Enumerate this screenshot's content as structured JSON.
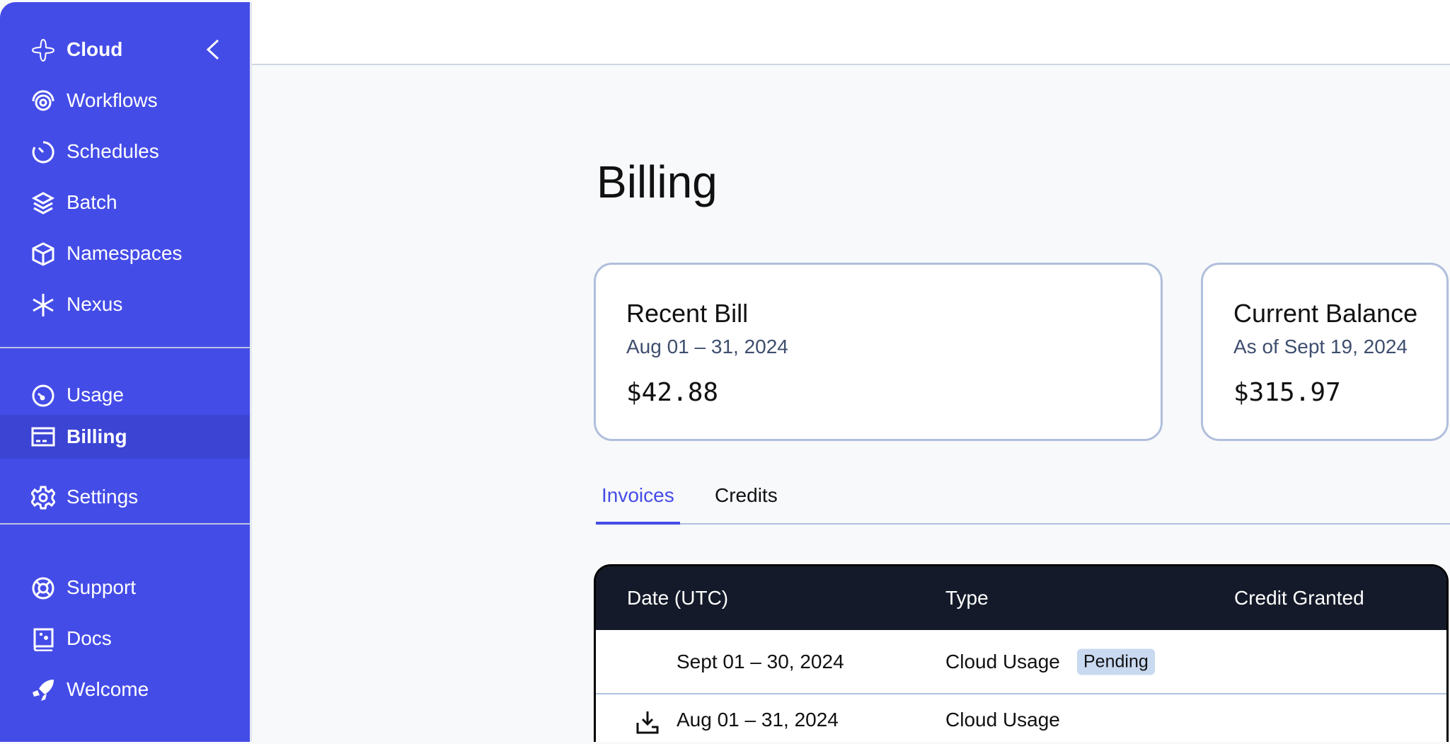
{
  "sidebar": {
    "brand": {
      "label": "Cloud",
      "icon": "cloud-logo-icon"
    },
    "collapse_icon": "chevron-left-icon",
    "primary": [
      {
        "label": "Workflows",
        "icon": "workflows-icon"
      },
      {
        "label": "Schedules",
        "icon": "timer-icon"
      },
      {
        "label": "Batch",
        "icon": "layers-icon"
      },
      {
        "label": "Namespaces",
        "icon": "cube-icon"
      },
      {
        "label": "Nexus",
        "icon": "asterisk-icon"
      }
    ],
    "account": [
      {
        "label": "Usage",
        "icon": "gauge-icon"
      },
      {
        "label": "Billing",
        "icon": "credit-card-icon",
        "active": true
      },
      {
        "label": "Settings",
        "icon": "gear-icon"
      }
    ],
    "help": [
      {
        "label": "Support",
        "icon": "lifebuoy-icon"
      },
      {
        "label": "Docs",
        "icon": "book-icon"
      },
      {
        "label": "Welcome",
        "icon": "rocket-icon"
      }
    ],
    "color": "#444ce7"
  },
  "page": {
    "title": "Billing"
  },
  "cards": {
    "recent": {
      "title": "Recent Bill",
      "subtitle": "Aug 01 – 31, 2024",
      "value": "$42.88"
    },
    "balance": {
      "title": "Current Balance",
      "subtitle": "As of Sept 19, 2024",
      "value": "$315.97"
    }
  },
  "tabs": [
    {
      "label": "Invoices",
      "active": true
    },
    {
      "label": "Credits"
    }
  ],
  "table": {
    "columns": [
      "Date (UTC)",
      "Type",
      "Credit Granted"
    ],
    "rows": [
      {
        "date": "Sept 01 – 30, 2024",
        "type": "Cloud Usage",
        "badge": "Pending"
      },
      {
        "date": "Aug 01 – 31, 2024",
        "type": "Cloud Usage",
        "download_icon": "download-icon"
      }
    ]
  }
}
